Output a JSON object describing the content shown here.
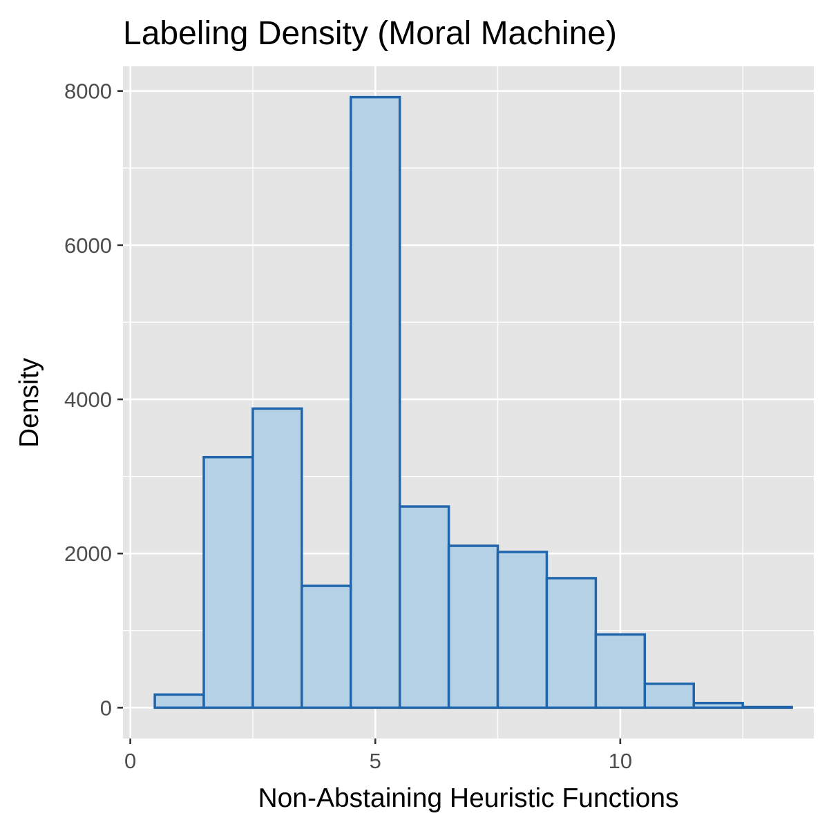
{
  "chart_data": {
    "type": "bar",
    "title": "Labeling Density (Moral Machine)",
    "xlabel": "Non-Abstaining Heuristic Functions",
    "ylabel": "Density",
    "x": [
      1,
      2,
      3,
      4,
      5,
      6,
      7,
      8,
      9,
      10,
      11,
      12,
      13
    ],
    "values": [
      170,
      3250,
      3880,
      1580,
      7920,
      2610,
      2100,
      2020,
      1680,
      950,
      310,
      60,
      8
    ],
    "bin_width": 1,
    "xlim": [
      -0.15,
      13.95
    ],
    "ylim": [
      -400,
      8320
    ],
    "x_ticks": [
      0,
      5,
      10
    ],
    "x_tick_labels": [
      "0",
      "5",
      "10"
    ],
    "y_ticks": [
      0,
      2000,
      4000,
      6000,
      8000
    ],
    "y_tick_labels": [
      "0",
      "2000",
      "4000",
      "6000",
      "8000"
    ],
    "grid": true,
    "legend": "none",
    "colors": {
      "panel_background": "#e5e5e5",
      "grid_major": "#ffffff",
      "bar_fill": "#b5d1e5",
      "bar_outline": "#2166ac",
      "tick_label": "#4d4d4d",
      "tick_mark": "#333333",
      "text": "#000000"
    }
  }
}
